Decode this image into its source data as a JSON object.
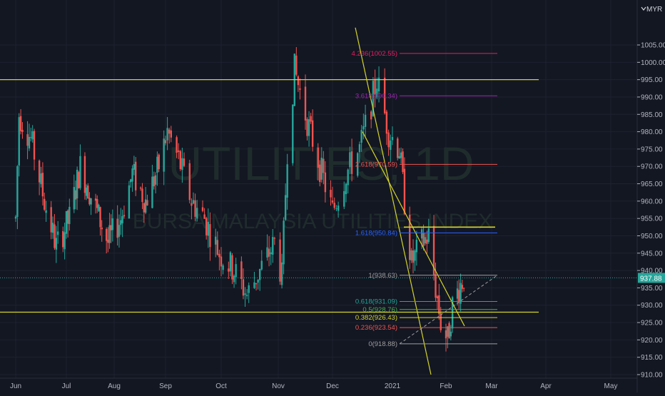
{
  "colors": {
    "background": "#131722",
    "grid": "#1e2230",
    "axis_text": "#b2b5be",
    "axis_line": "#2a2e39",
    "bull": "#26a69a",
    "bear": "#ef5350",
    "trend": "#d4d42a",
    "watermark": "#1f2c2c",
    "price_tag_bg": "#26a69a",
    "price_tag_text": "#ffffff",
    "fib_0": "#9e9e9e",
    "fib_0236": "#ef5350",
    "fib_0382": "#d4d42a",
    "fib_05": "#4caf50",
    "fib_0618": "#26a69a",
    "fib_1": "#9e9e9e",
    "fib_1618": "#2962ff",
    "fib_2618": "#ef5350",
    "fib_3618": "#9c27b0",
    "fib_4236": "#e91e63"
  },
  "header": {
    "currency_label": "MYR",
    "currency_icon": "chevron-down-icon"
  },
  "watermark": {
    "title": "UTILITIES, 1D",
    "subtitle": "BURSA MALAYSIA UTILITIES INDEX"
  },
  "price_tag": "937.88",
  "chart_data": {
    "type": "candlestick",
    "title": "UTILITIES, 1D",
    "subtitle": "BURSA MALAYSIA UTILITIES INDEX",
    "currency": "MYR",
    "last_price": 937.88,
    "x_ticks": [
      "Jun",
      "Jul",
      "Aug",
      "Sep",
      "Oct",
      "Nov",
      "Dec",
      "2021",
      "Feb",
      "Mar",
      "Apr",
      "May"
    ],
    "x_tick_dates": [
      "2020-06-01",
      "2020-07-01",
      "2020-08-01",
      "2020-09-01",
      "2020-10-01",
      "2020-11-01",
      "2020-12-01",
      "2021-01-01",
      "2021-02-01",
      "2021-03-01",
      "2021-04-01",
      "2021-05-01"
    ],
    "ylim": [
      910,
      1010
    ],
    "y_ticks": [
      910,
      915,
      920,
      925,
      930,
      935,
      940,
      945,
      950,
      955,
      960,
      965,
      970,
      975,
      980,
      985,
      990,
      995,
      1000,
      1005
    ],
    "horizontal_lines": [
      {
        "price": 995.0,
        "label": "",
        "color_key": "trend"
      },
      {
        "price": 928.0,
        "label": "",
        "color_key": "trend"
      },
      {
        "price": 952.5,
        "label": "",
        "color_key": "trend"
      }
    ],
    "trend_lines": [
      {
        "from": [
          "2020-12-06",
          1010.0
        ],
        "to": [
          "2021-01-26",
          911.0
        ]
      },
      {
        "from": [
          "2020-12-12",
          980.0
        ],
        "to": [
          "2021-02-16",
          924.0
        ]
      }
    ],
    "fib_extension_levels": [
      {
        "ratio": "0",
        "price": 918.88,
        "label": "0(918.88)",
        "color_key": "fib_0"
      },
      {
        "ratio": "0.236",
        "price": 923.54,
        "label": "0.236(923.54)",
        "color_key": "fib_0236"
      },
      {
        "ratio": "0.382",
        "price": 926.43,
        "label": "0.382(926.43)",
        "color_key": "fib_0382"
      },
      {
        "ratio": "0.5",
        "price": 928.76,
        "label": "0.5(928.76)",
        "color_key": "fib_05"
      },
      {
        "ratio": "0.618",
        "price": 931.09,
        "label": "0.618(931.09)",
        "color_key": "fib_0618"
      },
      {
        "ratio": "1",
        "price": 938.63,
        "label": "1(938.63)",
        "color_key": "fib_1"
      },
      {
        "ratio": "1.618",
        "price": 950.84,
        "label": "1.618(950.84)",
        "color_key": "fib_1618"
      },
      {
        "ratio": "2.618",
        "price": 970.59,
        "label": "2.618(970.59)",
        "color_key": "fib_2618"
      },
      {
        "ratio": "3.618",
        "price": 990.34,
        "label": "3.618(990.34)",
        "color_key": "fib_3618"
      },
      {
        "ratio": "4.236",
        "price": 1002.55,
        "label": "4.236(1002.55)",
        "color_key": "fib_4236"
      }
    ],
    "fib_range": {
      "start_date": "2021-01-02",
      "end_date": "2021-02-28"
    },
    "fib_diagonal": {
      "from": [
        "2021-01-02",
        918.88
      ],
      "to": [
        "2021-02-28",
        938.63
      ]
    },
    "key_points": [
      {
        "date": "2020-06-01",
        "price": 955
      },
      {
        "date": "2020-06-03",
        "price": 985
      },
      {
        "date": "2020-06-10",
        "price": 978
      },
      {
        "date": "2020-06-18",
        "price": 960
      },
      {
        "date": "2020-06-25",
        "price": 947
      },
      {
        "date": "2020-07-03",
        "price": 955
      },
      {
        "date": "2020-07-10",
        "price": 970
      },
      {
        "date": "2020-07-20",
        "price": 958
      },
      {
        "date": "2020-07-28",
        "price": 948
      },
      {
        "date": "2020-08-05",
        "price": 955
      },
      {
        "date": "2020-08-12",
        "price": 968
      },
      {
        "date": "2020-08-20",
        "price": 960
      },
      {
        "date": "2020-08-28",
        "price": 970
      },
      {
        "date": "2020-09-02",
        "price": 980
      },
      {
        "date": "2020-09-08",
        "price": 972
      },
      {
        "date": "2020-09-15",
        "price": 960
      },
      {
        "date": "2020-09-22",
        "price": 955
      },
      {
        "date": "2020-09-30",
        "price": 945
      },
      {
        "date": "2020-10-08",
        "price": 940
      },
      {
        "date": "2020-10-15",
        "price": 933
      },
      {
        "date": "2020-10-22",
        "price": 940
      },
      {
        "date": "2020-10-30",
        "price": 948
      },
      {
        "date": "2020-11-03",
        "price": 938
      },
      {
        "date": "2020-11-06",
        "price": 975
      },
      {
        "date": "2020-11-10",
        "price": 998
      },
      {
        "date": "2020-11-16",
        "price": 985
      },
      {
        "date": "2020-11-24",
        "price": 970
      },
      {
        "date": "2020-12-01",
        "price": 957
      },
      {
        "date": "2020-12-08",
        "price": 968
      },
      {
        "date": "2020-12-15",
        "price": 975
      },
      {
        "date": "2020-12-21",
        "price": 988
      },
      {
        "date": "2020-12-24",
        "price": 995
      },
      {
        "date": "2020-12-30",
        "price": 980
      },
      {
        "date": "2021-01-05",
        "price": 975
      },
      {
        "date": "2021-01-08",
        "price": 960
      },
      {
        "date": "2021-01-12",
        "price": 942
      },
      {
        "date": "2021-01-18",
        "price": 948
      },
      {
        "date": "2021-01-22",
        "price": 950
      },
      {
        "date": "2021-01-26",
        "price": 935
      },
      {
        "date": "2021-01-29",
        "price": 925
      },
      {
        "date": "2021-02-02",
        "price": 920
      },
      {
        "date": "2021-02-05",
        "price": 930
      },
      {
        "date": "2021-02-09",
        "price": 935
      },
      {
        "date": "2021-02-12",
        "price": 938
      }
    ]
  }
}
